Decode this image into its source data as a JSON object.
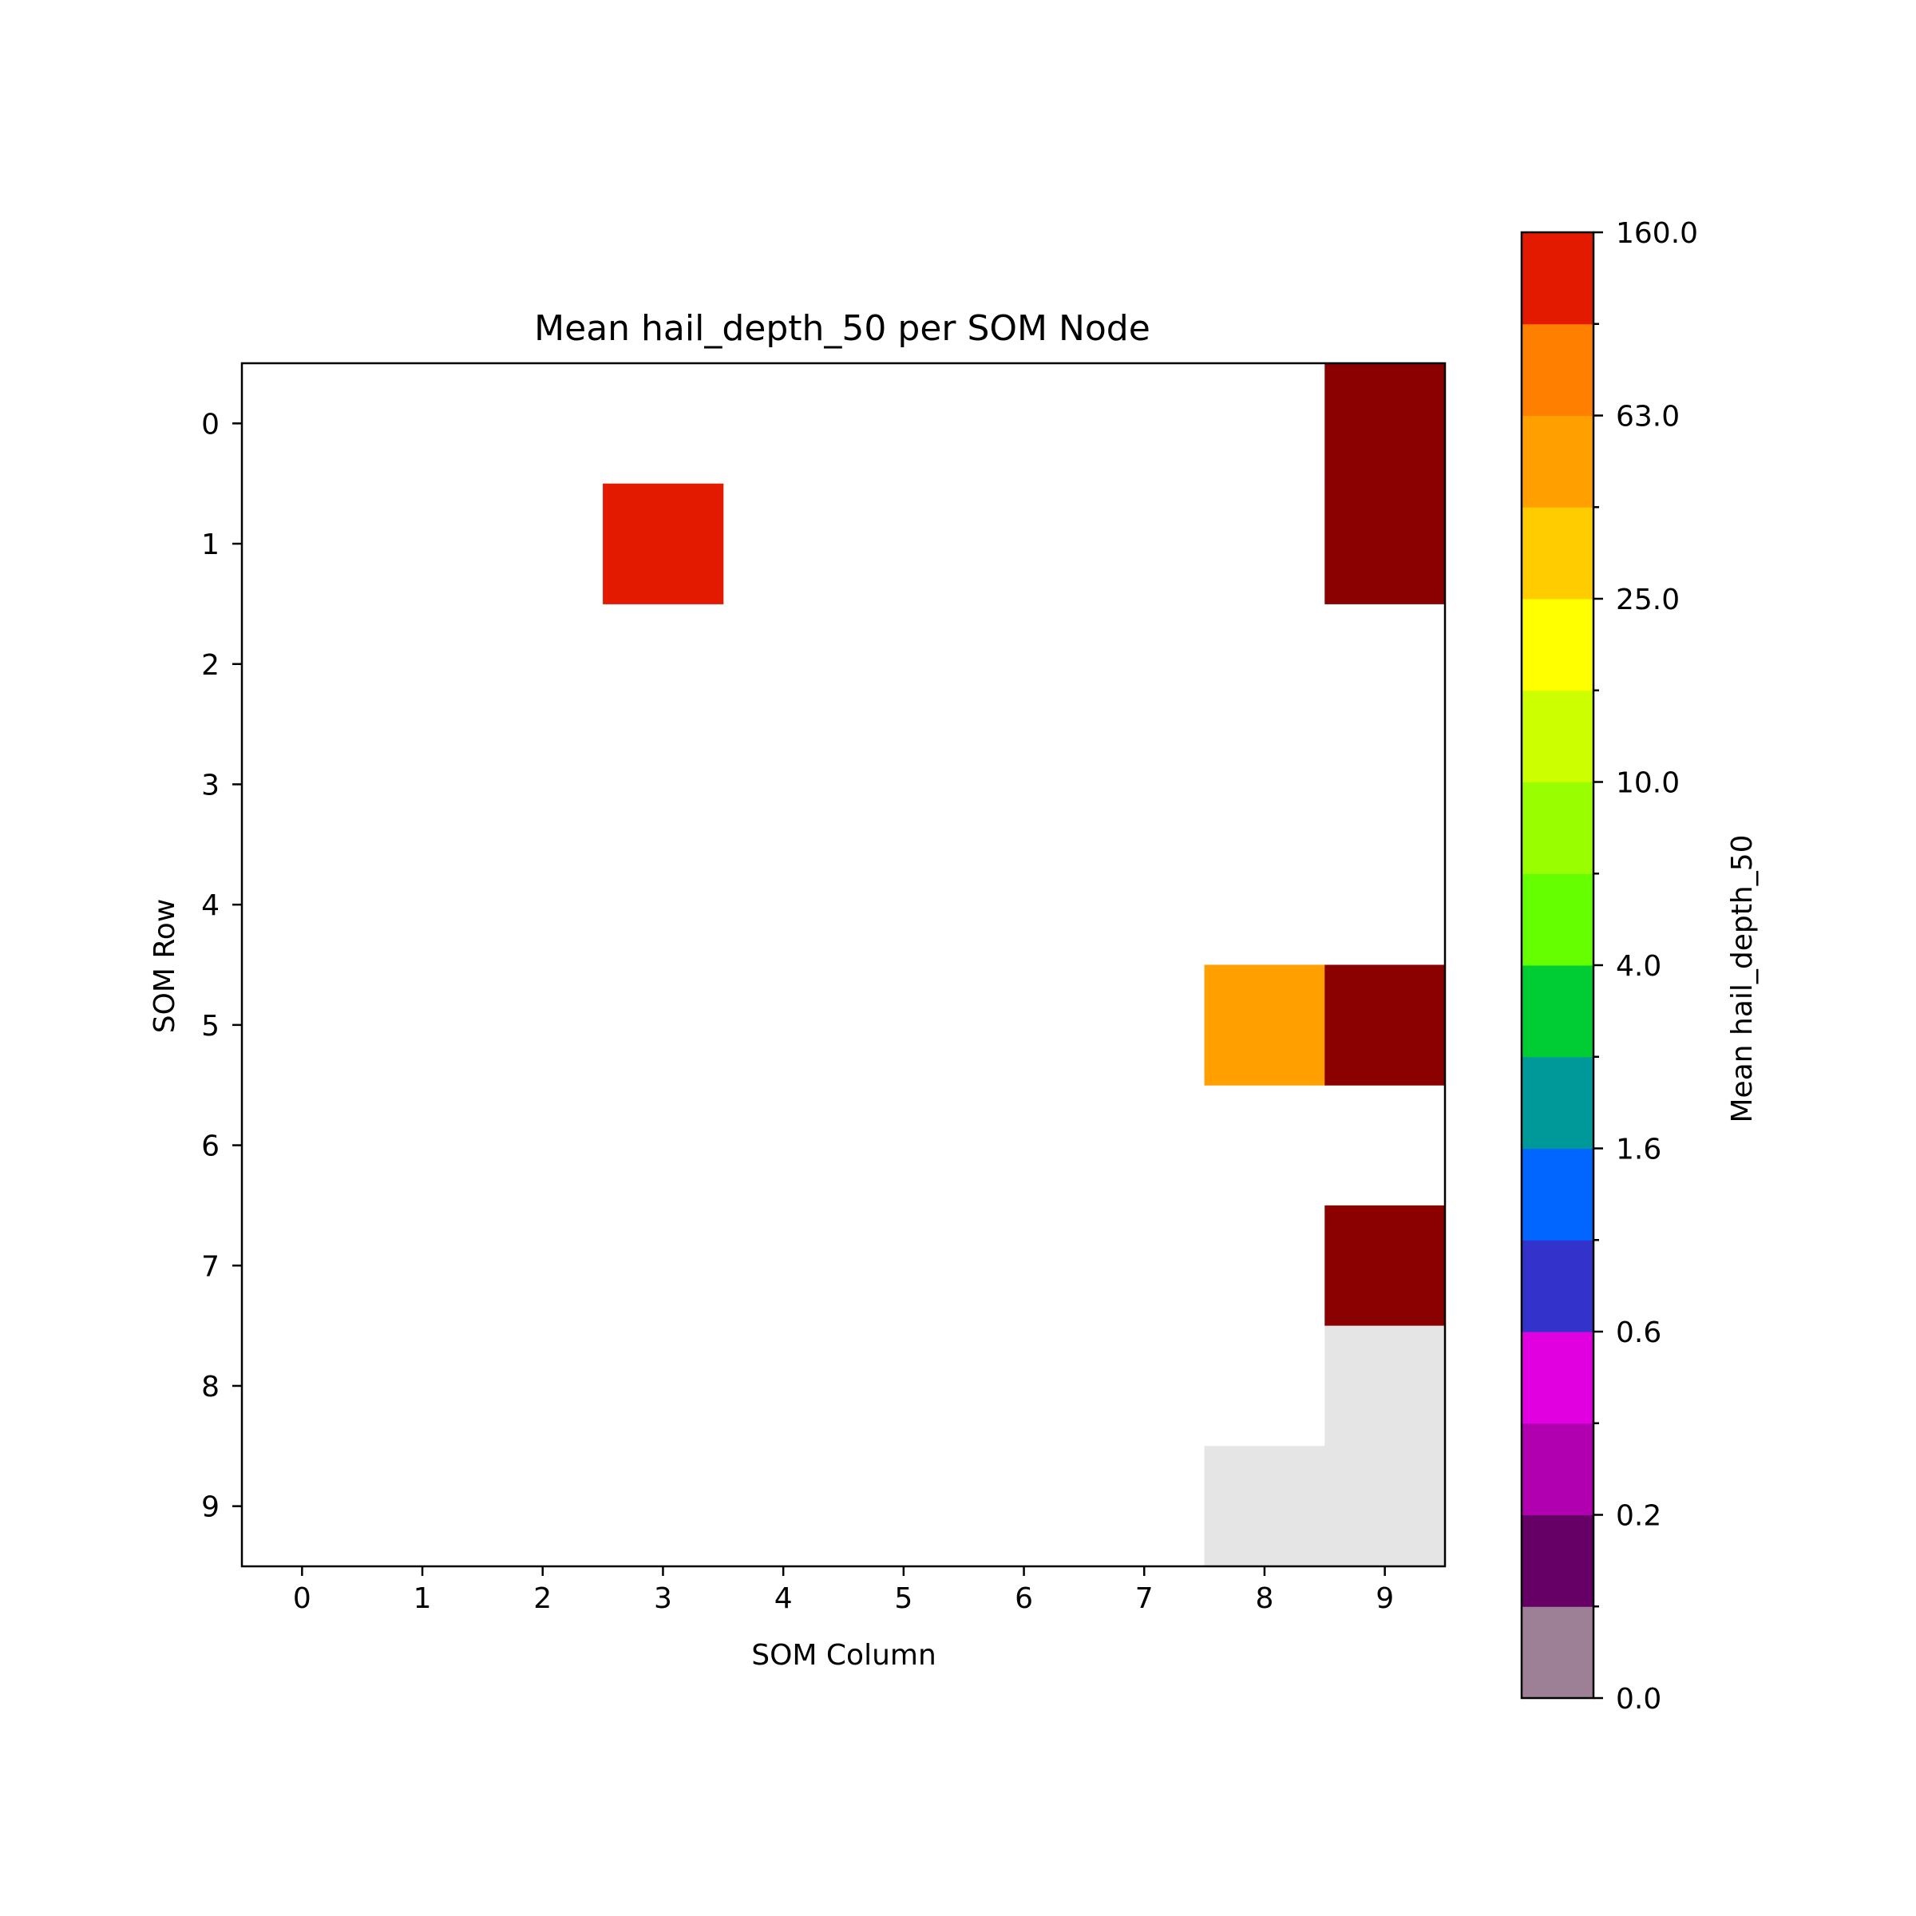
{
  "chart_data": {
    "type": "heatmap",
    "title": "Mean hail_depth_50 per SOM Node",
    "xlabel": "SOM Column",
    "ylabel": "SOM Row",
    "x_ticks": [
      "0",
      "1",
      "2",
      "3",
      "4",
      "5",
      "6",
      "7",
      "8",
      "9"
    ],
    "y_ticks": [
      "0",
      "1",
      "2",
      "3",
      "4",
      "5",
      "6",
      "7",
      "8",
      "9"
    ],
    "cells": [
      {
        "row": 0,
        "col": 9,
        "color": "#8b0000",
        "level": "above 160.0"
      },
      {
        "row": 1,
        "col": 3,
        "color": "#e31a00",
        "level": "110-160"
      },
      {
        "row": 1,
        "col": 9,
        "color": "#8b0000",
        "level": "above 160.0"
      },
      {
        "row": 5,
        "col": 8,
        "color": "#ffa000",
        "level": "40-63"
      },
      {
        "row": 5,
        "col": 9,
        "color": "#8b0000",
        "level": "above 160.0"
      },
      {
        "row": 7,
        "col": 9,
        "color": "#8b0000",
        "level": "above 160.0"
      },
      {
        "row": 8,
        "col": 9,
        "color": "#e5e5e5",
        "level": "no data"
      },
      {
        "row": 9,
        "col": 8,
        "color": "#e5e5e5",
        "level": "no data"
      },
      {
        "row": 9,
        "col": 9,
        "color": "#e5e5e5",
        "level": "no data"
      }
    ],
    "empty_cell_color": "#ffffff",
    "colorbar": {
      "label": "Mean hail_depth_50",
      "tick_labels": [
        "0.0",
        "0.2",
        "0.6",
        "1.6",
        "4.0",
        "10.0",
        "25.0",
        "63.0",
        "160.0"
      ],
      "colors_bottom_to_top": [
        "#9e8096",
        "#660066",
        "#b000b0",
        "#e000e0",
        "#3333cc",
        "#0066ff",
        "#009999",
        "#00cc33",
        "#66ff00",
        "#99ff00",
        "#ccff00",
        "#ffff00",
        "#ffcc00",
        "#ffa000",
        "#ff8000",
        "#e31a00"
      ]
    },
    "grid": false
  }
}
